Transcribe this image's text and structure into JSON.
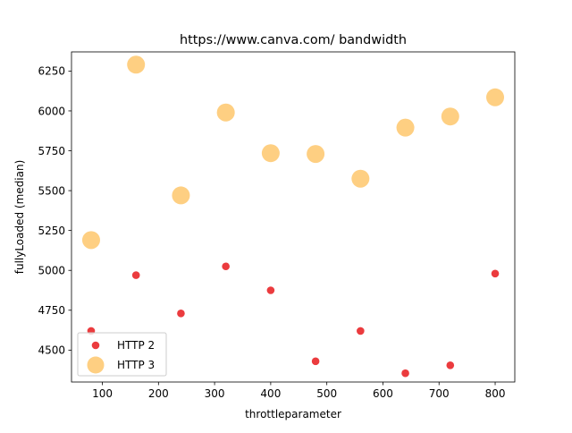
{
  "chart_data": {
    "type": "scatter",
    "title": "https://www.canva.com/ bandwidth",
    "xlabel": "throttleparameter",
    "ylabel": "fullyLoaded (median)",
    "xlim": [
      45,
      835
    ],
    "ylim": [
      4300,
      6370
    ],
    "xticks": [
      100,
      200,
      300,
      400,
      500,
      600,
      700,
      800
    ],
    "yticks": [
      4500,
      4750,
      5000,
      5250,
      5500,
      5750,
      6000,
      6250
    ],
    "grid": false,
    "legend_position": "lower-left",
    "series": [
      {
        "name": "HTTP 2",
        "color": "#e8191c",
        "points": [
          {
            "x": 80,
            "y": 4620
          },
          {
            "x": 160,
            "y": 4970
          },
          {
            "x": 240,
            "y": 4730
          },
          {
            "x": 320,
            "y": 5025
          },
          {
            "x": 400,
            "y": 4875
          },
          {
            "x": 480,
            "y": 4430
          },
          {
            "x": 560,
            "y": 4620
          },
          {
            "x": 640,
            "y": 4355
          },
          {
            "x": 720,
            "y": 4405
          },
          {
            "x": 800,
            "y": 4980
          }
        ]
      },
      {
        "name": "HTTP 3",
        "color": "#fdbf58",
        "points": [
          {
            "x": 80,
            "y": 5190
          },
          {
            "x": 160,
            "y": 6290
          },
          {
            "x": 240,
            "y": 5470
          },
          {
            "x": 320,
            "y": 5990
          },
          {
            "x": 400,
            "y": 5735
          },
          {
            "x": 480,
            "y": 5730
          },
          {
            "x": 560,
            "y": 5575
          },
          {
            "x": 640,
            "y": 5895
          },
          {
            "x": 720,
            "y": 5965
          },
          {
            "x": 800,
            "y": 6085
          }
        ]
      }
    ]
  }
}
